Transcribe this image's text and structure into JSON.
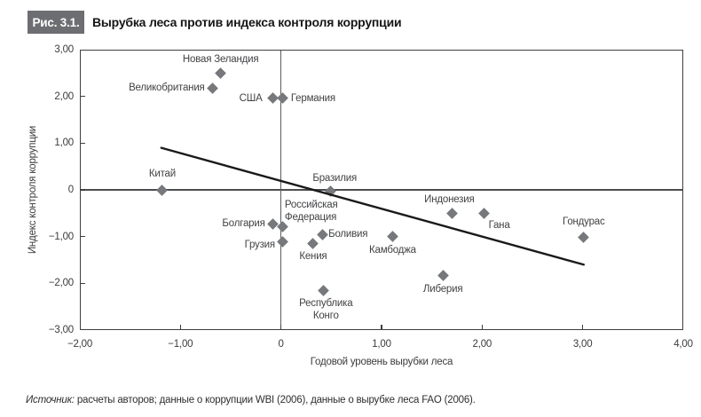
{
  "figure": {
    "tag": "Рис. 3.1.",
    "title": "Вырубка леса против индекса контроля коррупции",
    "source_label": "Источник:",
    "source_text": "расчеты авторов; данные о коррупции WBI (2006), данные о вырубке леса FAO (2006)."
  },
  "chart_data": {
    "type": "scatter",
    "title": "Вырубка леса против индекса контроля коррупции",
    "xlabel": "Годовой уровень вырубки леса",
    "ylabel": "Индекс контроля коррупции",
    "xlim": [
      -2,
      4
    ],
    "ylim": [
      -3,
      3
    ],
    "grid": false,
    "legend": "none",
    "marker_color": "#77787b",
    "x_ticks": [
      {
        "value": -2,
        "label": "−2,00"
      },
      {
        "value": -1,
        "label": "−1,00"
      },
      {
        "value": 0,
        "label": "0"
      },
      {
        "value": 1,
        "label": "1,00"
      },
      {
        "value": 2,
        "label": "2,00"
      },
      {
        "value": 3,
        "label": "3,00"
      },
      {
        "value": 4,
        "label": "4,00"
      }
    ],
    "y_ticks": [
      {
        "value": 3,
        "label": "3,00"
      },
      {
        "value": 2,
        "label": "2,00"
      },
      {
        "value": 1,
        "label": "1,00"
      },
      {
        "value": 0,
        "label": "0"
      },
      {
        "value": -1,
        "label": "−1,00"
      },
      {
        "value": -2,
        "label": "−2,00"
      },
      {
        "value": -3,
        "label": "−3,00"
      }
    ],
    "zero_lines": true,
    "trend_line": {
      "x1": -1.19,
      "y1": 0.9,
      "x2": 3.01,
      "y2": -1.6,
      "color": "#1a1a1a",
      "width": 2.4
    },
    "points": [
      {
        "country": "Новая Зеландия",
        "x": -0.6,
        "y": 2.5,
        "label_pos": "above"
      },
      {
        "country": "Великобритания",
        "x": -0.68,
        "y": 2.18,
        "label_pos": "left"
      },
      {
        "country": "США",
        "x": -0.08,
        "y": 1.96,
        "label_pos": "left",
        "dx": -3
      },
      {
        "country": "Германия",
        "x": 0.02,
        "y": 1.96,
        "label_pos": "right"
      },
      {
        "country": "Китай",
        "x": -1.18,
        "y": 0,
        "label_pos": "above",
        "dy": -3
      },
      {
        "country": "Бразилия",
        "x": 0.49,
        "y": -0.03,
        "label_pos": "above",
        "dx": 5
      },
      {
        "country": "Болгария",
        "x": -0.08,
        "y": -0.73,
        "label_pos": "left"
      },
      {
        "country": "Российская Федерация",
        "lines": [
          "Российская",
          "Федерация"
        ],
        "x": 0.02,
        "y": -0.79,
        "label_pos": "above",
        "align": "left",
        "dx": 2,
        "dy": 4
      },
      {
        "country": "Грузия",
        "x": 0.02,
        "y": -1.12,
        "label_pos": "left",
        "dy": 3
      },
      {
        "country": "Кения",
        "x": 0.32,
        "y": -1.14,
        "label_pos": "below"
      },
      {
        "country": "Боливия",
        "x": 0.41,
        "y": -0.95,
        "label_pos": "right",
        "dx": -2
      },
      {
        "country": "Республика Конго",
        "lines": [
          "Республика",
          "Конго"
        ],
        "x": 0.42,
        "y": -2.15,
        "label_pos": "below",
        "dx": 3
      },
      {
        "country": "Камбоджа",
        "x": 1.11,
        "y": -1.0,
        "label_pos": "below"
      },
      {
        "country": "Индонезия",
        "x": 1.7,
        "y": -0.5,
        "label_pos": "above",
        "dx": -3
      },
      {
        "country": "Гана",
        "x": 2.02,
        "y": -0.5,
        "label_pos": "below-right"
      },
      {
        "country": "Либерия",
        "x": 1.61,
        "y": -1.84,
        "label_pos": "below"
      },
      {
        "country": "Гондурас",
        "x": 3.01,
        "y": -1.02,
        "label_pos": "above",
        "dy": -3
      }
    ]
  }
}
